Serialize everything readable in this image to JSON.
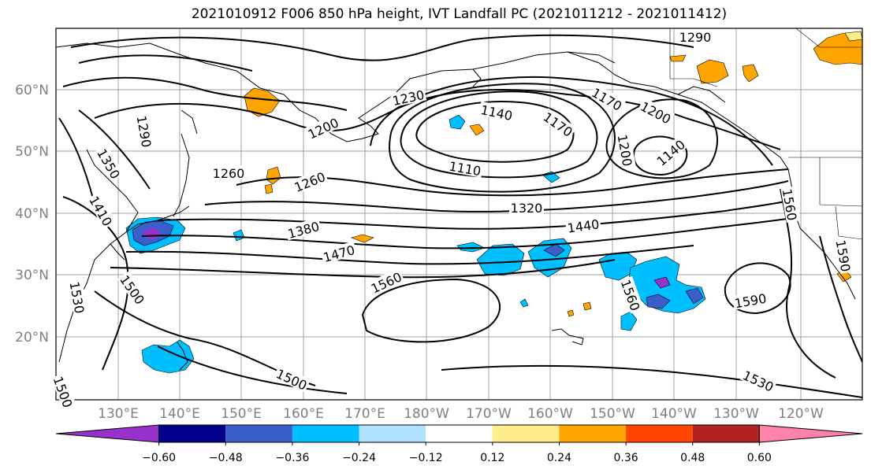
{
  "title": "2021010912 F006 850 hPa height, IVT Landfall PC (2021011212 - 2021011412)",
  "lat_labels": [
    "60°N",
    "50°N",
    "40°N",
    "30°N",
    "20°N"
  ],
  "lon_labels": [
    "130°E",
    "140°E",
    "150°E",
    "160°E",
    "170°E",
    "180°W",
    "170°W",
    "160°W",
    "150°W",
    "140°W",
    "130°W",
    "120°W"
  ],
  "colorbar": {
    "colors": [
      "#9932cc",
      "#00008b",
      "#3a5fcd",
      "#00bfff",
      "#b0e2ff",
      "#ffffff",
      "#ffec8b",
      "#ffa500",
      "#ff4500",
      "#b22222",
      "#ff82ab"
    ],
    "labels": [
      "−0.60",
      "−0.48",
      "−0.36",
      "−0.24",
      "−0.12",
      "0.12",
      "0.24",
      "0.36",
      "0.48",
      "0.60"
    ]
  },
  "contour_labels": [
    "1230",
    "1140",
    "1170",
    "1260",
    "1200",
    "1290",
    "1200",
    "1170",
    "1140",
    "1290",
    "1200",
    "1350",
    "1260",
    "1110",
    "1410",
    "1320",
    "1380",
    "1440",
    "1560",
    "1470",
    "1500",
    "1560",
    "1590",
    "1530",
    "1560",
    "1590",
    "1500",
    "1530",
    "1500"
  ]
}
